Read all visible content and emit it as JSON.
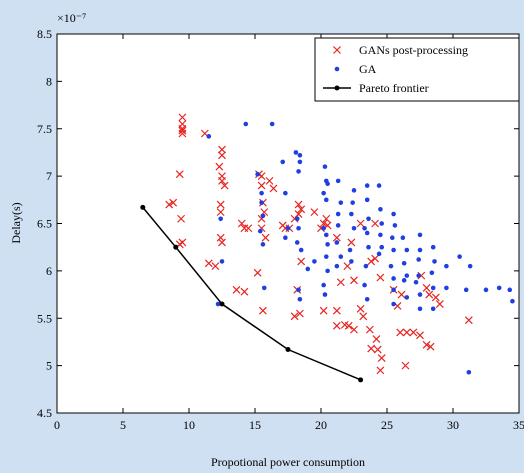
{
  "chart_data": {
    "type": "scatter",
    "x_label": "Propotional power consumption",
    "y_label": "Delay(s)",
    "y_multiplier": "×10⁻⁷",
    "xlim": [
      0,
      35
    ],
    "xticks": [
      0,
      5,
      10,
      15,
      20,
      25,
      30,
      35
    ],
    "ylim": [
      4.5,
      8.5
    ],
    "yticks": [
      4.5,
      5,
      5.5,
      6,
      6.5,
      7,
      7.5,
      8,
      8.5
    ],
    "legend": "upper right",
    "series": [
      {
        "name": "GANs post-processing",
        "color": "#e8231f",
        "marker": "x",
        "x": [
          9.5,
          9.5,
          9.5,
          9.5,
          9.5,
          11.2,
          12.5,
          12.5,
          12.3,
          12.5,
          12.5,
          12.7,
          9.3,
          8.5,
          8.8,
          9.4,
          9.5,
          9.3,
          12.4,
          12.4,
          12.4,
          12.5,
          11.5,
          12.0,
          14.0,
          14.2,
          14.5,
          13.6,
          14.2,
          15.3,
          15.5,
          15.5,
          15.6,
          15.7,
          15.5,
          15.5,
          15.8,
          16.1,
          16.4,
          15.2,
          15.6,
          17.1,
          17.3,
          17.6,
          18.3,
          18.5,
          18.0,
          18.3,
          18.5,
          18.2,
          18.4,
          18.0,
          19.5,
          20.0,
          20.2,
          20.4,
          20.5,
          21.2,
          22.3,
          22.0,
          21.5,
          20.2,
          21.2,
          21.2,
          21.8,
          22.1,
          22.5,
          23.0,
          23.2,
          23.7,
          24.2,
          23.8,
          24.3,
          24.6,
          24.5,
          23.8,
          24.1,
          24.5,
          25.5,
          26.1,
          25.8,
          26.0,
          26.5,
          27.0,
          26.4,
          27.5,
          28.0,
          28.3,
          28.2,
          27.6,
          28.0,
          28.7,
          29.0,
          31.2,
          22.5,
          23.0,
          24.1
        ],
        "values": [
          7.62,
          7.55,
          7.5,
          7.45,
          7.48,
          7.45,
          7.28,
          7.22,
          7.1,
          7.0,
          6.95,
          6.9,
          7.02,
          6.7,
          6.72,
          6.55,
          6.3,
          6.28,
          6.7,
          6.62,
          6.35,
          6.3,
          6.08,
          6.05,
          6.5,
          6.45,
          6.45,
          5.8,
          5.78,
          7.02,
          7.0,
          6.9,
          6.72,
          6.62,
          6.55,
          6.45,
          6.35,
          6.95,
          6.87,
          5.98,
          5.58,
          6.48,
          6.45,
          6.45,
          6.7,
          6.65,
          6.55,
          6.6,
          6.1,
          5.8,
          5.55,
          5.52,
          6.62,
          6.45,
          6.5,
          6.55,
          6.48,
          6.35,
          6.3,
          6.05,
          5.88,
          5.58,
          5.58,
          5.42,
          5.43,
          5.42,
          5.38,
          5.6,
          5.52,
          5.38,
          5.28,
          5.18,
          5.17,
          5.08,
          4.95,
          6.1,
          6.13,
          5.93,
          5.8,
          5.75,
          5.63,
          5.35,
          5.35,
          5.35,
          5.0,
          5.32,
          5.22,
          5.2,
          5.75,
          5.95,
          5.82,
          5.72,
          5.65,
          5.48,
          5.9,
          6.5,
          6.5
        ]
      },
      {
        "name": "GA",
        "color": "#1f3fe0",
        "marker": "dot",
        "x": [
          11.5,
          14.3,
          16.3,
          18.1,
          18.4,
          18.4,
          18.3,
          17.1,
          15.2,
          15.5,
          15.5,
          15.6,
          15.4,
          12.4,
          12.5,
          15.6,
          17.3,
          17.5,
          17.3,
          18.2,
          18.3,
          18.2,
          18.5,
          19.0,
          19.5,
          20.3,
          20.4,
          20.5,
          20.2,
          20.4,
          20.2,
          20.4,
          20.5,
          20.4,
          20.5,
          20.2,
          20.3,
          21.3,
          21.5,
          21.3,
          21.3,
          21.2,
          21.5,
          21.2,
          22.5,
          22.4,
          22.3,
          22.5,
          22.2,
          22.3,
          23.5,
          23.5,
          23.6,
          23.3,
          23.5,
          23.6,
          23.4,
          23.3,
          23.5,
          24.4,
          24.5,
          24.6,
          24.5,
          24.6,
          24.4,
          25.5,
          25.6,
          25.4,
          25.5,
          25.3,
          25.5,
          25.5,
          25.5,
          26.2,
          26.5,
          26.3,
          26.5,
          26.3,
          26.5,
          27.5,
          27.5,
          27.4,
          27.4,
          27.2,
          27.5,
          27.5,
          28.5,
          28.6,
          28.4,
          28.5,
          28.5,
          29.5,
          29.5,
          30.5,
          31.3,
          31.0,
          32.5,
          33.5,
          34.3,
          34.5,
          31.2,
          15.7,
          18.4,
          18.3,
          12.2
        ],
        "values": [
          7.42,
          7.55,
          7.55,
          7.25,
          7.22,
          7.15,
          7.05,
          7.15,
          7.02,
          6.82,
          6.72,
          6.58,
          6.42,
          6.55,
          6.1,
          6.28,
          6.82,
          6.45,
          6.35,
          6.55,
          6.45,
          6.3,
          6.22,
          6.02,
          6.1,
          7.1,
          6.95,
          6.92,
          6.82,
          6.75,
          6.45,
          6.38,
          6.28,
          6.15,
          6.0,
          5.85,
          5.75,
          6.95,
          6.72,
          6.6,
          6.48,
          6.3,
          6.15,
          6.05,
          6.85,
          6.72,
          6.6,
          6.45,
          6.22,
          6.1,
          6.9,
          6.75,
          6.55,
          6.45,
          6.4,
          6.25,
          6.05,
          5.85,
          5.7,
          6.9,
          6.65,
          6.5,
          6.38,
          6.25,
          6.18,
          6.6,
          6.48,
          6.35,
          6.22,
          6.05,
          5.92,
          5.8,
          5.65,
          6.35,
          6.22,
          6.08,
          5.95,
          5.9,
          5.72,
          6.38,
          6.22,
          6.12,
          5.95,
          5.88,
          5.75,
          5.6,
          6.25,
          6.1,
          5.98,
          5.82,
          5.6,
          6.05,
          5.82,
          6.15,
          6.05,
          5.8,
          5.8,
          5.82,
          5.8,
          5.68,
          4.93,
          5.82,
          5.7,
          5.8,
          5.65
        ]
      },
      {
        "name": "Pareto frontier",
        "color": "#000000",
        "marker": "line",
        "x": [
          6.5,
          9,
          12.5,
          17.5,
          23
        ],
        "values": [
          6.67,
          6.25,
          5.65,
          5.17,
          4.85
        ]
      }
    ]
  }
}
